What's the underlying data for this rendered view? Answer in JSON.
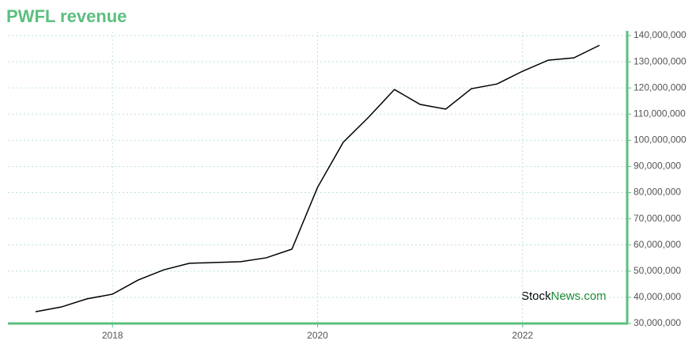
{
  "chart_data": {
    "type": "line",
    "title": "PWFL revenue",
    "x": [
      2017.25,
      2017.5,
      2017.75,
      2018,
      2018.25,
      2018.5,
      2018.75,
      2019,
      2019.25,
      2019.5,
      2019.75,
      2020,
      2020.25,
      2020.5,
      2020.75,
      2021,
      2021.25,
      2021.5,
      2021.75,
      2022,
      2022.25,
      2022.5,
      2022.75
    ],
    "series": [
      {
        "name": "PWFL revenue",
        "color": "#000000",
        "values": [
          34500000,
          36300000,
          39400000,
          41200000,
          46600000,
          50500000,
          53000000,
          53300000,
          53600000,
          55100000,
          58400000,
          82000000,
          99200000,
          108900000,
          119400000,
          113700000,
          111900000,
          119700000,
          121500000,
          126400000,
          130600000,
          131500000,
          136300000
        ]
      }
    ],
    "xlim": [
      2016.98,
      2023.02
    ],
    "xticks": [
      2018,
      2020,
      2022
    ],
    "ylim": [
      30000000,
      140000000
    ],
    "yticks": [
      {
        "value": 30000000,
        "label": "30,000,000"
      },
      {
        "value": 40000000,
        "label": "40,000,000"
      },
      {
        "value": 50000000,
        "label": "50,000,000"
      },
      {
        "value": 60000000,
        "label": "60,000,000"
      },
      {
        "value": 70000000,
        "label": "70,000,000"
      },
      {
        "value": 80000000,
        "label": "80,000,000"
      },
      {
        "value": 90000000,
        "label": "90,000,000"
      },
      {
        "value": 100000000,
        "label": "100,000,000"
      },
      {
        "value": 110000000,
        "label": "110,000,000"
      },
      {
        "value": 120000000,
        "label": "120,000,000"
      },
      {
        "value": 130000000,
        "label": "130,000,000"
      },
      {
        "value": 140000000,
        "label": "140,000,000"
      }
    ],
    "grid": true,
    "axis_color": "#5cbf7f",
    "watermark": [
      "Stock",
      "News.com"
    ]
  }
}
